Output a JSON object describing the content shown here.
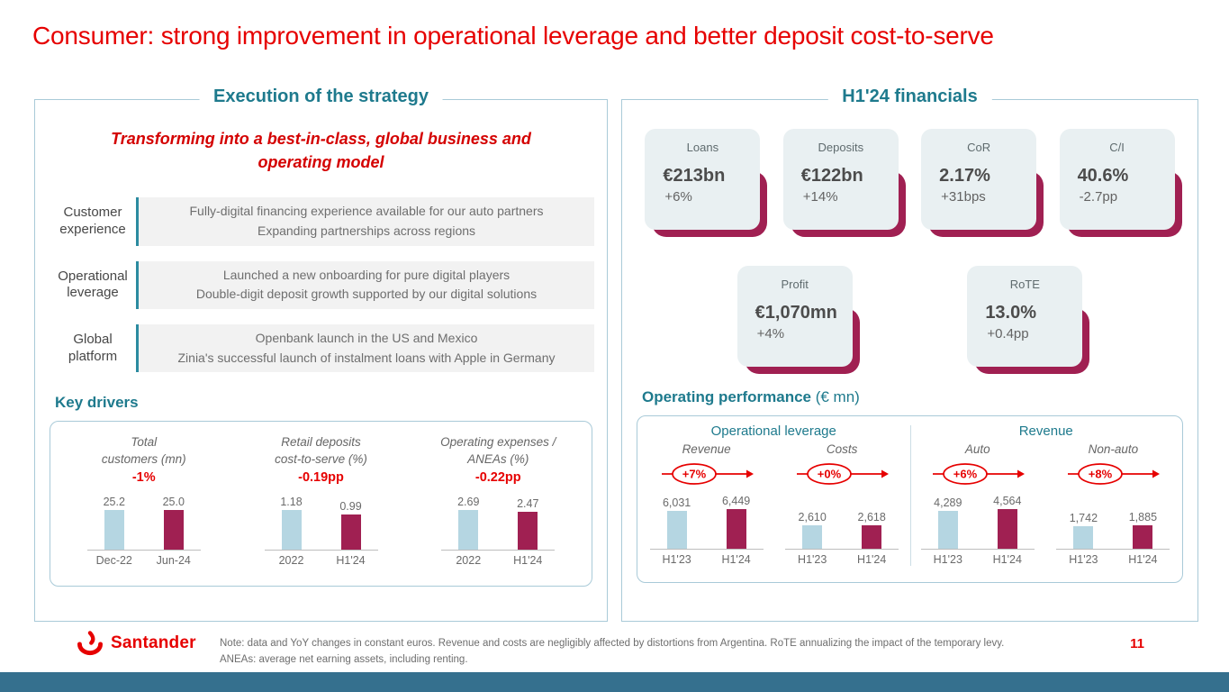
{
  "title": "Consumer: strong improvement in operational leverage and better deposit cost-to-serve",
  "colors": {
    "red": "#e60000",
    "maroon": "#a02052",
    "light_blue_bar": "#b5d6e2",
    "teal": "#1e7a8d",
    "bottom_bar": "#35708e"
  },
  "left_panel": {
    "heading": "Execution of the strategy",
    "subtitle": "Transforming into a best-in-class, global business and operating model",
    "rows": [
      {
        "label": "Customer experience",
        "text_line1": "Fully-digital financing experience available for our auto partners",
        "text_line2": "Expanding partnerships across regions"
      },
      {
        "label": "Operational leverage",
        "text_line1": "Launched a new onboarding for pure digital players",
        "text_line2": "Double-digit deposit growth supported by our digital solutions"
      },
      {
        "label": "Global platform",
        "text_line1": "Openbank launch in the US and Mexico",
        "text_line2": "Zinia's successful launch of instalment loans with Apple in Germany"
      }
    ],
    "key_drivers_heading": "Key drivers"
  },
  "right_panel": {
    "heading": "H1'24 financials",
    "kpis": [
      {
        "label": "Loans",
        "value": "€213bn",
        "delta": "+6%"
      },
      {
        "label": "Deposits",
        "value": "€122bn",
        "delta": "+14%"
      },
      {
        "label": "CoR",
        "value": "2.17%",
        "delta": "+31bps"
      },
      {
        "label": "C/I",
        "value": "40.6%",
        "delta": "-2.7pp"
      },
      {
        "label": "Profit",
        "value": "€1,070mn",
        "delta": "+4%"
      },
      {
        "label": "RoTE",
        "value": "13.0%",
        "delta": "+0.4pp"
      }
    ],
    "operating_heading_bold": "Operating performance",
    "operating_heading_normal": " (€ mn)",
    "group_labels": [
      "Operational leverage",
      "Revenue"
    ]
  },
  "footer": {
    "brand": "Santander",
    "note_line1": "Note: data and YoY changes in constant euros. Revenue and costs are negligibly affected by distortions from Argentina. RoTE annualizing the impact of the temporary levy.",
    "note_line2": "ANEAs: average net earning assets, including renting.",
    "page": "11"
  },
  "chart_data": [
    {
      "type": "bar",
      "title_lines": [
        "Total",
        "customers (mn)"
      ],
      "delta": "-1%",
      "delta_style": "text",
      "categories": [
        "Dec-22",
        "Jun-24"
      ],
      "values": [
        25.2,
        25.0
      ],
      "labels": [
        "25.2",
        "25.0"
      ]
    },
    {
      "type": "bar",
      "title_lines": [
        "Retail deposits",
        "cost-to-serve (%)"
      ],
      "delta": "-0.19pp",
      "delta_style": "text",
      "categories": [
        "2022",
        "H1'24"
      ],
      "values": [
        1.18,
        0.99
      ],
      "labels": [
        "1.18",
        "0.99"
      ]
    },
    {
      "type": "bar",
      "title_lines": [
        "Operating expenses /",
        "ANEAs (%)"
      ],
      "delta": "-0.22pp",
      "delta_style": "text",
      "categories": [
        "2022",
        "H1'24"
      ],
      "values": [
        2.69,
        2.47
      ],
      "labels": [
        "2.69",
        "2.47"
      ]
    },
    {
      "type": "bar",
      "subtitle": "Revenue",
      "delta": "+7%",
      "delta_style": "badge",
      "scale_group": "operational_leverage",
      "categories": [
        "H1'23",
        "H1'24"
      ],
      "values": [
        6031,
        6449
      ],
      "labels": [
        "6,031",
        "6,449"
      ]
    },
    {
      "type": "bar",
      "subtitle": "Costs",
      "delta": "+0%",
      "delta_style": "badge",
      "scale_group": "operational_leverage",
      "categories": [
        "H1'23",
        "H1'24"
      ],
      "values": [
        2610,
        2618
      ],
      "labels": [
        "2,610",
        "2,618"
      ]
    },
    {
      "type": "bar",
      "subtitle": "Auto",
      "delta": "+6%",
      "delta_style": "badge",
      "scale_group": "revenue",
      "categories": [
        "H1'23",
        "H1'24"
      ],
      "values": [
        4289,
        4564
      ],
      "labels": [
        "4,289",
        "4,564"
      ]
    },
    {
      "type": "bar",
      "subtitle": "Non-auto",
      "delta": "+8%",
      "delta_style": "badge",
      "scale_group": "revenue",
      "categories": [
        "H1'23",
        "H1'24"
      ],
      "values": [
        1742,
        1885
      ],
      "labels": [
        "1,742",
        "1,885"
      ]
    }
  ]
}
